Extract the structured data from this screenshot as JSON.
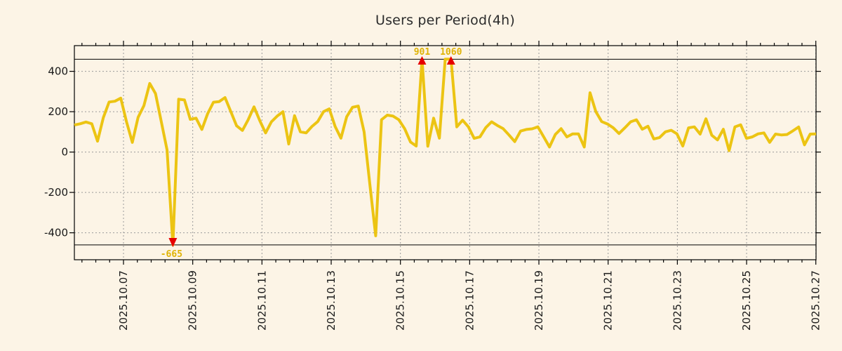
{
  "page": {
    "background": "#fcf4e6"
  },
  "chart": {
    "title": "Users per Period(4h)"
  },
  "chart_data": {
    "type": "line",
    "title": "Users per Period(4h)",
    "xlabel": "",
    "ylabel": "",
    "x_interval": "4h",
    "x_tick_labels": [
      "2025.10.07",
      "2025.10.09",
      "2025.10.11",
      "2025.10.13",
      "2025.10.15",
      "2025.10.17",
      "2025.10.19",
      "2025.10.21",
      "2025.10.23",
      "2025.10.25",
      "2025.10.27"
    ],
    "y_ticks": [
      400,
      200,
      0,
      -200,
      -400
    ],
    "ylim": [
      -540,
      530
    ],
    "clip_values": [
      460,
      -460
    ],
    "grid": true,
    "legend_position": "none",
    "colors": {
      "line": "#ecc413",
      "grid": "#9a9a9a",
      "axis": "#000000",
      "annotation_text": "#dfb305",
      "annotation_arrow": "#e60000",
      "tick_text": "#1a1a1a"
    },
    "series": [
      {
        "name": "users",
        "values": [
          134,
          140,
          149,
          140,
          54,
          171,
          248,
          252,
          267,
          150,
          48,
          172,
          230,
          340,
          290,
          150,
          10,
          -665,
          262,
          258,
          162,
          168,
          112,
          190,
          247,
          250,
          270,
          200,
          130,
          107,
          160,
          224,
          155,
          95,
          150,
          178,
          200,
          40,
          180,
          100,
          95,
          127,
          151,
          200,
          214,
          127,
          69,
          175,
          222,
          228,
          100,
          -160,
          -415,
          160,
          183,
          178,
          160,
          116,
          50,
          30,
          901,
          29,
          168,
          69,
          520,
          1060,
          125,
          158,
          125,
          68,
          75,
          121,
          150,
          132,
          116,
          85,
          52,
          104,
          112,
          115,
          125,
          75,
          25,
          87,
          116,
          75,
          90,
          90,
          25,
          294,
          200,
          151,
          139,
          120,
          92,
          120,
          150,
          160,
          113,
          128,
          65,
          72,
          100,
          108,
          90,
          30,
          120,
          125,
          89,
          165,
          83,
          60,
          113,
          7,
          125,
          135,
          68,
          75,
          90,
          95,
          48,
          89,
          85,
          87,
          105,
          124,
          36,
          89,
          90
        ]
      }
    ],
    "annotations": [
      {
        "label": "901",
        "value": 901,
        "index": 60,
        "direction": "up"
      },
      {
        "label": "1060",
        "value": 1060,
        "index": 65,
        "direction": "up"
      },
      {
        "label": "-665",
        "value": -665,
        "index": 17,
        "direction": "down"
      }
    ]
  }
}
